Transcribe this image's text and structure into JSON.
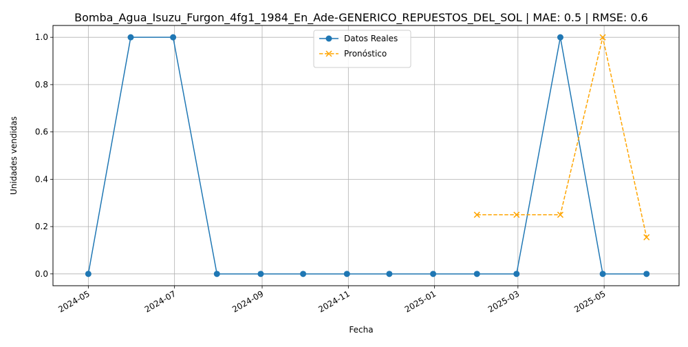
{
  "chart_data": {
    "type": "line",
    "title": "Bomba_Agua_Isuzu_Furgon_4fg1_1984_En_Ade-GENERICO_REPUESTOS_DEL_SOL | MAE: 0.5 | RMSE: 0.6",
    "xlabel": "Fecha",
    "ylabel": "Unidades vendidas",
    "x_ticks": [
      "2024-05",
      "2024-07",
      "2024-09",
      "2024-11",
      "2025-01",
      "2025-03",
      "2025-05"
    ],
    "y_ticks": [
      0.0,
      0.2,
      0.4,
      0.6,
      0.8,
      1.0
    ],
    "y_tick_labels": [
      "0.0",
      "0.2",
      "0.4",
      "0.6",
      "0.8",
      "1.0"
    ],
    "xlim": [
      "2024-04-06",
      "2025-06-23"
    ],
    "ylim": [
      -0.05,
      1.05
    ],
    "grid": true,
    "legend_position": "top-center",
    "series": [
      {
        "name": "Datos Reales",
        "color": "#1f77b4",
        "style": "solid",
        "marker": "circle",
        "x": [
          "2024-05-01",
          "2024-05-31",
          "2024-06-30",
          "2024-07-31",
          "2024-08-31",
          "2024-09-30",
          "2024-10-31",
          "2024-11-30",
          "2024-12-31",
          "2025-01-31",
          "2025-02-28",
          "2025-03-31",
          "2025-04-30",
          "2025-05-31"
        ],
        "values": [
          0,
          1,
          1,
          0,
          0,
          0,
          0,
          0,
          0,
          0,
          0,
          1,
          0,
          0
        ]
      },
      {
        "name": "Pronóstico",
        "color": "#ffa500",
        "style": "dashed",
        "marker": "x",
        "x": [
          "2025-01-31",
          "2025-02-28",
          "2025-03-31",
          "2025-04-30",
          "2025-05-31"
        ],
        "values": [
          0.25,
          0.25,
          0.25,
          1.0,
          0.155
        ]
      }
    ]
  }
}
